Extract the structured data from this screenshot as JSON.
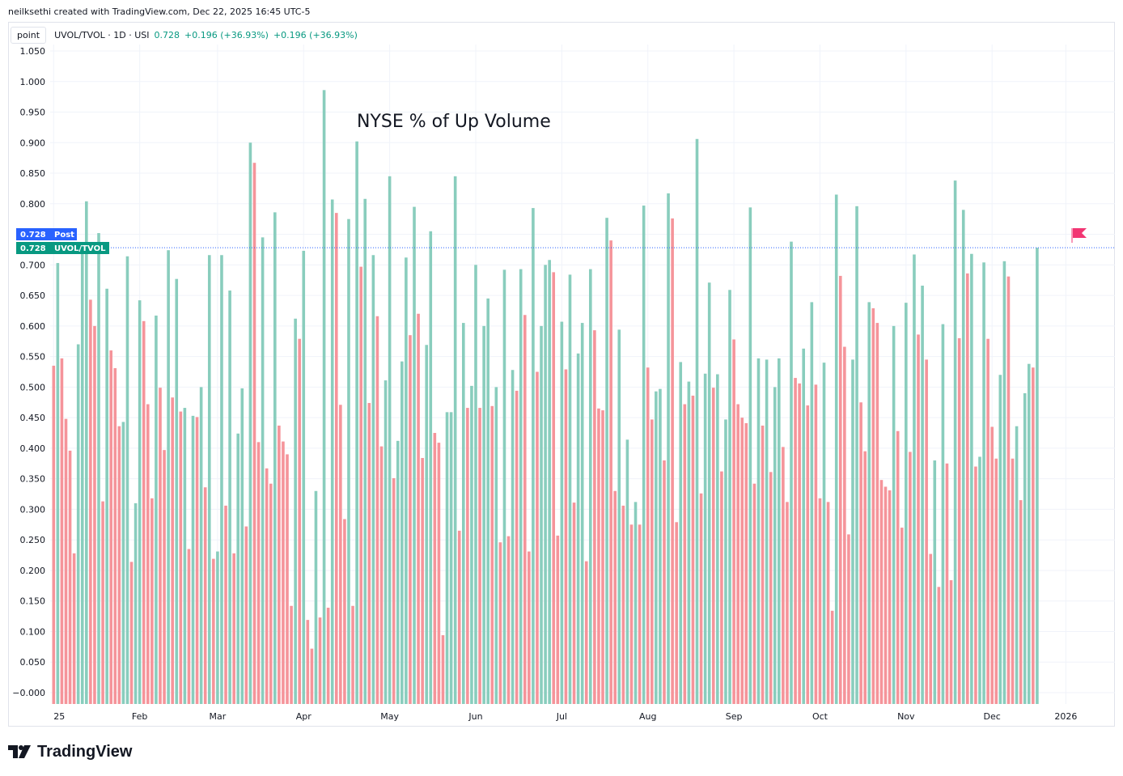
{
  "header": {
    "attribution": "neilksethi created with TradingView.com, Dec 22, 2025 16:45 UTC-5"
  },
  "legend": {
    "scale_button": "point",
    "symbol": "UVOL/TVOL · 1D · USI",
    "last": "0.728",
    "change1": "+0.196 (+36.93%)",
    "change2": "+0.196 (+36.93%)"
  },
  "tags": {
    "post_value": "0.728",
    "post_label": "Post",
    "main_value": "0.728",
    "main_label": "UVOL/TVOL"
  },
  "logo": {
    "text": "TradingView"
  },
  "colors": {
    "up": "#89cdbd",
    "down": "#f5949a",
    "post_tag": "#2962ff",
    "main_tag": "#089981",
    "flag": "#f23673",
    "grid": "#f0f3fa"
  },
  "chart_data": {
    "type": "bar",
    "title": "NYSE % of Up Volume",
    "ylim": [
      -0.02,
      1.06
    ],
    "yticks": [
      "1.050",
      "1.000",
      "0.950",
      "0.900",
      "0.850",
      "0.800",
      "0.750",
      "0.700",
      "0.650",
      "0.600",
      "0.550",
      "0.500",
      "0.450",
      "0.400",
      "0.350",
      "0.300",
      "0.250",
      "0.200",
      "0.150",
      "0.100",
      "0.050",
      "−0.000"
    ],
    "ytick_values": [
      1.05,
      1.0,
      0.95,
      0.9,
      0.85,
      0.8,
      0.75,
      0.7,
      0.65,
      0.6,
      0.55,
      0.5,
      0.45,
      0.4,
      0.35,
      0.3,
      0.25,
      0.2,
      0.15,
      0.1,
      0.05,
      0.0
    ],
    "xtick_labels": [
      "25",
      "Feb",
      "Mar",
      "Apr",
      "May",
      "Jun",
      "Jul",
      "Aug",
      "Sep",
      "Oct",
      "Nov",
      "Dec",
      "2026"
    ],
    "xtick_indices": [
      0,
      21,
      40,
      61,
      82,
      103,
      124,
      145,
      166,
      187,
      208,
      229,
      247
    ],
    "last_value": 0.728,
    "values": [
      0.535,
      0.703,
      0.547,
      0.448,
      0.396,
      0.228,
      0.57,
      0.719,
      0.804,
      0.643,
      0.6,
      0.752,
      0.313,
      0.661,
      0.56,
      0.531,
      0.436,
      0.443,
      0.714,
      0.214,
      0.31,
      0.642,
      0.608,
      0.472,
      0.318,
      0.617,
      0.499,
      0.397,
      0.724,
      0.483,
      0.677,
      0.46,
      0.466,
      0.235,
      0.453,
      0.451,
      0.5,
      0.336,
      0.716,
      0.219,
      0.231,
      0.716,
      0.306,
      0.658,
      0.228,
      0.424,
      0.498,
      0.272,
      0.9,
      0.867,
      0.41,
      0.745,
      0.367,
      0.342,
      0.786,
      0.437,
      0.411,
      0.39,
      0.142,
      0.612,
      0.579,
      0.723,
      0.119,
      0.072,
      0.33,
      0.123,
      0.986,
      0.139,
      0.807,
      0.785,
      0.471,
      0.284,
      0.775,
      0.142,
      0.902,
      0.697,
      0.808,
      0.474,
      0.716,
      0.616,
      0.403,
      0.511,
      0.845,
      0.351,
      0.412,
      0.542,
      0.712,
      0.585,
      0.795,
      0.62,
      0.384,
      0.569,
      0.755,
      0.425,
      0.409,
      0.094,
      0.459,
      0.459,
      0.845,
      0.265,
      0.605,
      0.466,
      0.502,
      0.7,
      0.466,
      0.6,
      0.645,
      0.469,
      0.5,
      0.246,
      0.692,
      0.256,
      0.528,
      0.494,
      0.693,
      0.618,
      0.231,
      0.793,
      0.525,
      0.6,
      0.7,
      0.708,
      0.688,
      0.257,
      0.607,
      0.529,
      0.684,
      0.311,
      0.555,
      0.605,
      0.215,
      0.693,
      0.593,
      0.465,
      0.462,
      0.777,
      0.74,
      0.33,
      0.594,
      0.306,
      0.414,
      0.275,
      0.312,
      0.275,
      0.797,
      0.532,
      0.447,
      0.493,
      0.497,
      0.38,
      0.817,
      0.776,
      0.279,
      0.541,
      0.472,
      0.509,
      0.486,
      0.906,
      0.326,
      0.522,
      0.671,
      0.499,
      0.521,
      0.362,
      0.447,
      0.659,
      0.578,
      0.472,
      0.45,
      0.441,
      0.794,
      0.342,
      0.547,
      0.437,
      0.545,
      0.361,
      0.5,
      0.547,
      0.402,
      0.312,
      0.738,
      0.515,
      0.506,
      0.563,
      0.47,
      0.639,
      0.504,
      0.318,
      0.54,
      0.312,
      0.134,
      0.815,
      0.682,
      0.566,
      0.259,
      0.545,
      0.796,
      0.475,
      0.395,
      0.639,
      0.629,
      0.605,
      0.348,
      0.337,
      0.331,
      0.6,
      0.428,
      0.27,
      0.638,
      0.394,
      0.717,
      0.586,
      0.666,
      0.545,
      0.227,
      0.38,
      0.173,
      0.603,
      0.375,
      0.184,
      0.838,
      0.58,
      0.79,
      0.686,
      0.718,
      0.37,
      0.386,
      0.704,
      0.579,
      0.435,
      0.383,
      0.52,
      0.706,
      0.681,
      0.383,
      0.436,
      0.315,
      0.49,
      0.538,
      0.532,
      0.728
    ]
  }
}
